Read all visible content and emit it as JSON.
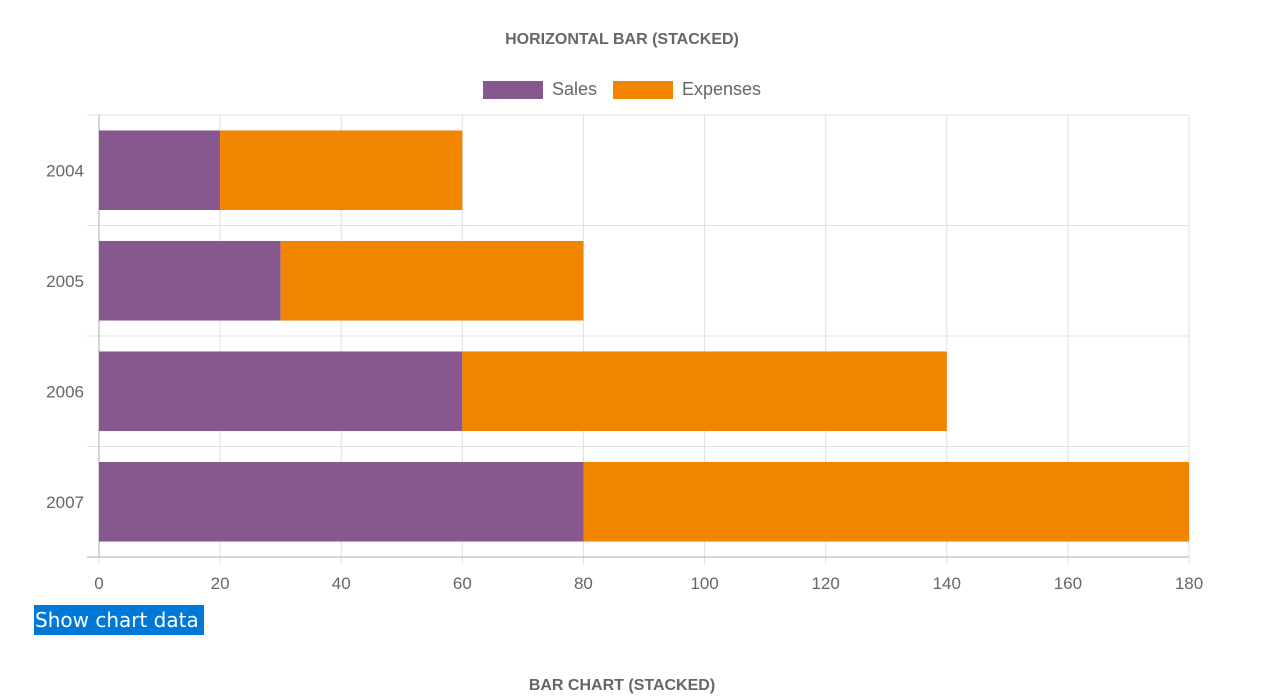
{
  "chart_data": {
    "type": "bar",
    "orientation": "horizontal",
    "stacked": true,
    "title": "HORIZONTAL BAR (STACKED)",
    "categories": [
      "2004",
      "2005",
      "2006",
      "2007"
    ],
    "series": [
      {
        "name": "Sales",
        "values": [
          20,
          30,
          60,
          80
        ],
        "color": "#87578f"
      },
      {
        "name": "Expenses",
        "values": [
          40,
          50,
          80,
          100
        ],
        "color": "#f28500"
      }
    ],
    "xlim": [
      0,
      180
    ],
    "xticks": [
      0,
      20,
      40,
      60,
      80,
      100,
      120,
      140,
      160,
      180
    ],
    "grid": true,
    "legend_position": "top"
  },
  "controls": {
    "show_data_label": "Show chart data"
  },
  "next_chart": {
    "title": "BAR CHART (STACKED)"
  }
}
